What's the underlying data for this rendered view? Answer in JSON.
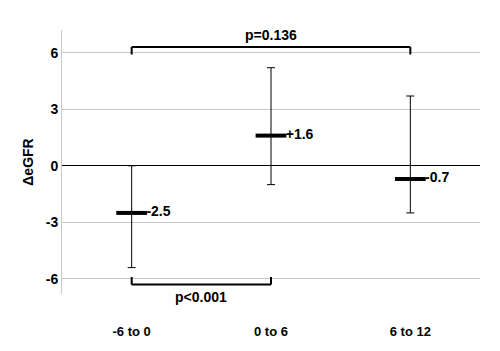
{
  "chart_data": {
    "type": "scatter",
    "marker": "dash",
    "color": "#000000",
    "categories": [
      "-6 to 0",
      "0 to 6",
      "6 to 12"
    ],
    "values": [
      -2.5,
      1.6,
      -0.7
    ],
    "value_labels": [
      "-2.5",
      "+1.6",
      "-0.7"
    ],
    "data_labels": true,
    "error_plus": [
      2.5,
      3.6,
      4.4
    ],
    "error_minus": [
      2.9,
      2.6,
      1.8
    ],
    "y_label": "ΔeGFR",
    "ylim": [
      -6.8,
      7.2
    ],
    "yticks": [
      -6,
      -3,
      0,
      3,
      6
    ],
    "grid": true,
    "comparisons": [
      {
        "from": "-6 to 0",
        "to": "6 to 12",
        "label": "p=0.136",
        "side": "top"
      },
      {
        "from": "-6 to 0",
        "to": "0 to 6",
        "label": "p<0.001",
        "side": "bottom"
      }
    ]
  }
}
